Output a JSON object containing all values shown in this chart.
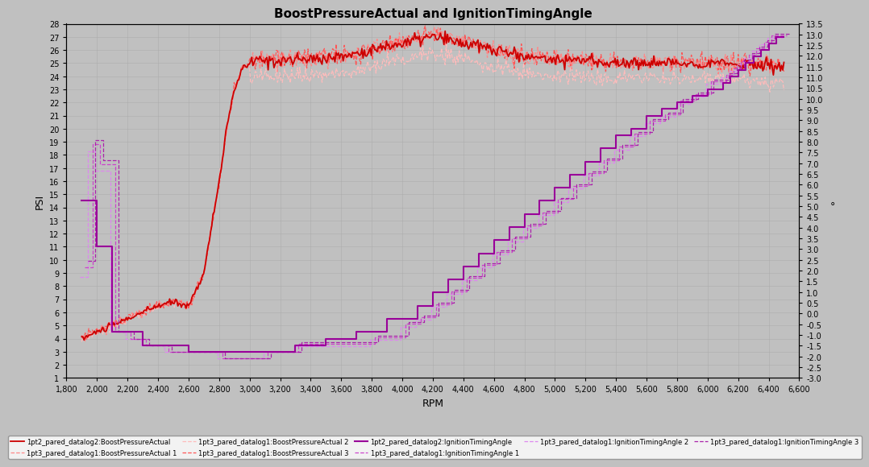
{
  "title": "BoostPressureActual and IgnitionTimingAngle",
  "xlabel": "RPM",
  "ylabel_left": "PSI",
  "ylabel_right": "°",
  "xlim": [
    1800,
    6600
  ],
  "ylim_left": [
    1,
    28
  ],
  "ylim_right": [
    -3.0,
    13.5
  ],
  "xticks": [
    1800,
    2000,
    2200,
    2400,
    2600,
    2800,
    3000,
    3200,
    3400,
    3600,
    3800,
    4000,
    4200,
    4400,
    4600,
    4800,
    5000,
    5200,
    5400,
    5600,
    5800,
    6000,
    6200,
    6400,
    6600
  ],
  "yticks_left": [
    1,
    2,
    3,
    4,
    5,
    6,
    7,
    8,
    9,
    10,
    11,
    12,
    13,
    14,
    15,
    16,
    17,
    18,
    19,
    20,
    21,
    22,
    23,
    24,
    25,
    26,
    27,
    28
  ],
  "yticks_right": [
    -3.0,
    -2.5,
    -2.0,
    -1.5,
    -1.0,
    -0.5,
    0.0,
    0.5,
    1.0,
    1.5,
    2.0,
    2.5,
    3.0,
    3.5,
    4.0,
    4.5,
    5.0,
    5.5,
    6.0,
    6.5,
    7.0,
    7.5,
    8.0,
    8.5,
    9.0,
    9.5,
    10.0,
    10.5,
    11.0,
    11.5,
    12.0,
    12.5,
    13.0,
    13.5
  ],
  "background_color": "#c0c0c0",
  "grid_color": "#aaaaaa",
  "boost1_color": "#cc0000",
  "boost2_color": "#ff8888",
  "boost3_color": "#ffbbbb",
  "boost4_color": "#ff5555",
  "ign1_color": "#990099",
  "ign2_color": "#cc44cc",
  "ign3_color": "#dd88ee",
  "ign4_color": "#aa22aa",
  "legend_labels": [
    "1pt2_pared_datalog2:BoostPressureActual",
    "1pt3_pared_datalog1:BoostPressureActual 1",
    "1pt3_pared_datalog1:BoostPressureActual 2",
    "1pt3_pared_datalog1:BoostPressureActual 3",
    "1pt2_pared_datalog2:IgnitionTimingAngle",
    "1pt3_pared_datalog1:IgnitionTimingAngle 1",
    "1pt3_pared_datalog1:IgnitionTimingAngle 2",
    "1pt3_pared_datalog1:IgnitionTimingAngle 3"
  ]
}
